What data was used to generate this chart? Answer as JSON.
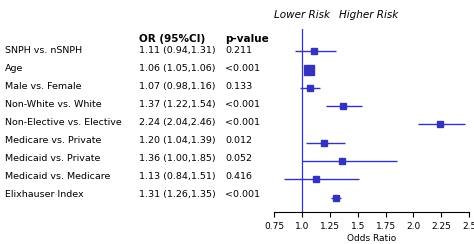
{
  "rows": [
    {
      "label": "SNPH vs. nSNPH",
      "or": 1.11,
      "lo": 0.94,
      "hi": 1.31,
      "pval": "0.211"
    },
    {
      "label": "Age",
      "or": 1.06,
      "lo": 1.05,
      "hi": 1.06,
      "pval": "<0.001"
    },
    {
      "label": "Male vs. Female",
      "or": 1.07,
      "lo": 0.98,
      "hi": 1.16,
      "pval": "0.133"
    },
    {
      "label": "Non-White vs. White",
      "or": 1.37,
      "lo": 1.22,
      "hi": 1.54,
      "pval": "<0.001"
    },
    {
      "label": "Non-Elective vs. Elective",
      "or": 2.24,
      "lo": 2.04,
      "hi": 2.46,
      "pval": "<0.001"
    },
    {
      "label": "Medicare vs. Private",
      "or": 1.2,
      "lo": 1.04,
      "hi": 1.39,
      "pval": "0.012"
    },
    {
      "label": "Medicaid vs. Private",
      "or": 1.36,
      "lo": 1.0,
      "hi": 1.85,
      "pval": "0.052"
    },
    {
      "label": "Medicaid vs. Medicare",
      "or": 1.13,
      "lo": 0.84,
      "hi": 1.51,
      "pval": "0.416"
    },
    {
      "label": "Elixhauser Index",
      "or": 1.31,
      "lo": 1.26,
      "hi": 1.35,
      "pval": "<0.001"
    }
  ],
  "or_ci_texts": [
    "1.11 (0.94,1.31)",
    "1.06 (1.05,1.06)",
    "1.07 (0.98,1.16)",
    "1.37 (1.22,1.54)",
    "2.24 (2.04,2.46)",
    "1.20 (1.04,1.39)",
    "1.36 (1.00,1.85)",
    "1.13 (0.84,1.51)",
    "1.31 (1.26,1.35)"
  ],
  "age_row_index": 1,
  "col_header_or": "OR (95%CI)",
  "col_header_p": "p-value",
  "xlabel": "Odds Ratio",
  "lower_risk_label": "Lower Risk",
  "higher_risk_label": "Higher Risk",
  "xmin": 0.75,
  "xmax": 2.5,
  "xticks": [
    0.75,
    1.0,
    1.25,
    1.5,
    1.75,
    2.0,
    2.25,
    2.5
  ],
  "ref_line": 1.0,
  "marker_color": "#3333bb",
  "line_color": "#3333bb",
  "age_marker_size": 7,
  "default_marker_size": 4,
  "bg_color": "#ffffff",
  "text_color": "#000000",
  "fontsize_labels": 6.8,
  "fontsize_header": 7.5,
  "fontsize_axis": 6.5,
  "fontsize_risk_labels": 7.5
}
